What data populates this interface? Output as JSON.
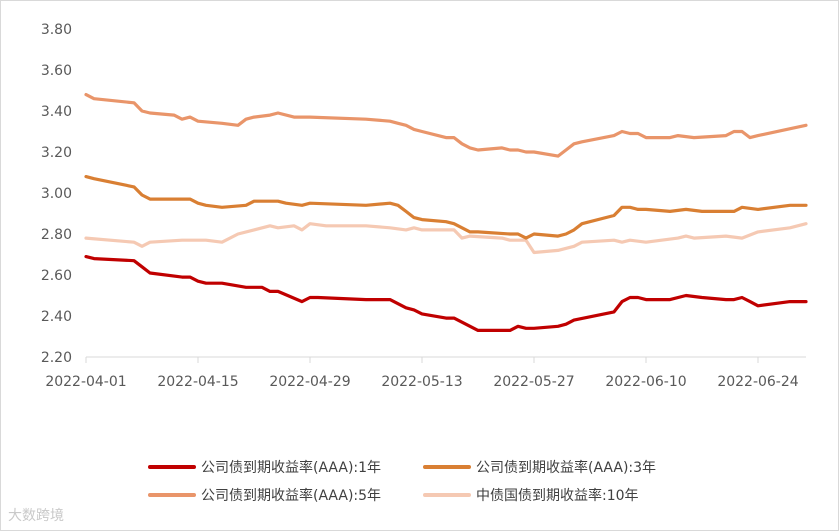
{
  "watermark": "大数跨境",
  "chart_data": {
    "type": "line",
    "title": "",
    "xlabel": "",
    "ylabel": "",
    "ylim": [
      2.2,
      3.8
    ],
    "yticks": [
      "2.20",
      "2.40",
      "2.60",
      "2.80",
      "3.00",
      "3.20",
      "3.40",
      "3.60",
      "3.80"
    ],
    "xlim": [
      "2022-04-01",
      "2022-06-30"
    ],
    "xticks": [
      "2022-04-01",
      "2022-04-15",
      "2022-04-29",
      "2022-05-13",
      "2022-05-27",
      "2022-06-10",
      "2022-06-24"
    ],
    "grid": false,
    "legend_position": "bottom",
    "series": [
      {
        "name": "公司债到期收益率(AAA):1年",
        "color": "#c00000",
        "points": [
          [
            "2022-04-01",
            2.69
          ],
          [
            "2022-04-02",
            2.68
          ],
          [
            "2022-04-07",
            2.67
          ],
          [
            "2022-04-08",
            2.64
          ],
          [
            "2022-04-09",
            2.61
          ],
          [
            "2022-04-13",
            2.59
          ],
          [
            "2022-04-14",
            2.59
          ],
          [
            "2022-04-15",
            2.57
          ],
          [
            "2022-04-16",
            2.56
          ],
          [
            "2022-04-18",
            2.56
          ],
          [
            "2022-04-21",
            2.54
          ],
          [
            "2022-04-22",
            2.54
          ],
          [
            "2022-04-23",
            2.54
          ],
          [
            "2022-04-24",
            2.52
          ],
          [
            "2022-04-25",
            2.52
          ],
          [
            "2022-04-28",
            2.47
          ],
          [
            "2022-04-29",
            2.49
          ],
          [
            "2022-04-30",
            2.49
          ],
          [
            "2022-05-06",
            2.48
          ],
          [
            "2022-05-09",
            2.48
          ],
          [
            "2022-05-11",
            2.44
          ],
          [
            "2022-05-12",
            2.43
          ],
          [
            "2022-05-13",
            2.41
          ],
          [
            "2022-05-16",
            2.39
          ],
          [
            "2022-05-17",
            2.39
          ],
          [
            "2022-05-19",
            2.35
          ],
          [
            "2022-05-20",
            2.33
          ],
          [
            "2022-05-23",
            2.33
          ],
          [
            "2022-05-24",
            2.33
          ],
          [
            "2022-05-25",
            2.35
          ],
          [
            "2022-05-26",
            2.34
          ],
          [
            "2022-05-27",
            2.34
          ],
          [
            "2022-05-30",
            2.35
          ],
          [
            "2022-05-31",
            2.36
          ],
          [
            "2022-06-01",
            2.38
          ],
          [
            "2022-06-06",
            2.42
          ],
          [
            "2022-06-07",
            2.47
          ],
          [
            "2022-06-08",
            2.49
          ],
          [
            "2022-06-09",
            2.49
          ],
          [
            "2022-06-10",
            2.48
          ],
          [
            "2022-06-13",
            2.48
          ],
          [
            "2022-06-15",
            2.5
          ],
          [
            "2022-06-17",
            2.49
          ],
          [
            "2022-06-20",
            2.48
          ],
          [
            "2022-06-21",
            2.48
          ],
          [
            "2022-06-22",
            2.49
          ],
          [
            "2022-06-23",
            2.47
          ],
          [
            "2022-06-24",
            2.45
          ],
          [
            "2022-06-28",
            2.47
          ],
          [
            "2022-06-30",
            2.47
          ]
        ]
      },
      {
        "name": "公司债到期收益率(AAA):3年",
        "color": "#d97f33",
        "points": [
          [
            "2022-04-01",
            3.08
          ],
          [
            "2022-04-02",
            3.07
          ],
          [
            "2022-04-07",
            3.03
          ],
          [
            "2022-04-08",
            2.99
          ],
          [
            "2022-04-09",
            2.97
          ],
          [
            "2022-04-14",
            2.97
          ],
          [
            "2022-04-15",
            2.95
          ],
          [
            "2022-04-16",
            2.94
          ],
          [
            "2022-04-18",
            2.93
          ],
          [
            "2022-04-21",
            2.94
          ],
          [
            "2022-04-22",
            2.96
          ],
          [
            "2022-04-25",
            2.96
          ],
          [
            "2022-04-26",
            2.95
          ],
          [
            "2022-04-28",
            2.94
          ],
          [
            "2022-04-29",
            2.95
          ],
          [
            "2022-05-06",
            2.94
          ],
          [
            "2022-05-09",
            2.95
          ],
          [
            "2022-05-10",
            2.94
          ],
          [
            "2022-05-11",
            2.91
          ],
          [
            "2022-05-12",
            2.88
          ],
          [
            "2022-05-13",
            2.87
          ],
          [
            "2022-05-16",
            2.86
          ],
          [
            "2022-05-17",
            2.85
          ],
          [
            "2022-05-18",
            2.83
          ],
          [
            "2022-05-19",
            2.81
          ],
          [
            "2022-05-20",
            2.81
          ],
          [
            "2022-05-24",
            2.8
          ],
          [
            "2022-05-25",
            2.8
          ],
          [
            "2022-05-26",
            2.78
          ],
          [
            "2022-05-27",
            2.8
          ],
          [
            "2022-05-30",
            2.79
          ],
          [
            "2022-05-31",
            2.8
          ],
          [
            "2022-06-01",
            2.82
          ],
          [
            "2022-06-02",
            2.85
          ],
          [
            "2022-06-06",
            2.89
          ],
          [
            "2022-06-07",
            2.93
          ],
          [
            "2022-06-08",
            2.93
          ],
          [
            "2022-06-09",
            2.92
          ],
          [
            "2022-06-10",
            2.92
          ],
          [
            "2022-06-13",
            2.91
          ],
          [
            "2022-06-15",
            2.92
          ],
          [
            "2022-06-17",
            2.91
          ],
          [
            "2022-06-20",
            2.91
          ],
          [
            "2022-06-21",
            2.91
          ],
          [
            "2022-06-22",
            2.93
          ],
          [
            "2022-06-24",
            2.92
          ],
          [
            "2022-06-28",
            2.94
          ],
          [
            "2022-06-30",
            2.94
          ]
        ]
      },
      {
        "name": "公司债到期收益率(AAA):5年",
        "color": "#e9956a",
        "points": [
          [
            "2022-04-01",
            3.48
          ],
          [
            "2022-04-02",
            3.46
          ],
          [
            "2022-04-07",
            3.44
          ],
          [
            "2022-04-08",
            3.4
          ],
          [
            "2022-04-09",
            3.39
          ],
          [
            "2022-04-12",
            3.38
          ],
          [
            "2022-04-13",
            3.36
          ],
          [
            "2022-04-14",
            3.37
          ],
          [
            "2022-04-15",
            3.35
          ],
          [
            "2022-04-18",
            3.34
          ],
          [
            "2022-04-20",
            3.33
          ],
          [
            "2022-04-21",
            3.36
          ],
          [
            "2022-04-22",
            3.37
          ],
          [
            "2022-04-24",
            3.38
          ],
          [
            "2022-04-25",
            3.39
          ],
          [
            "2022-04-27",
            3.37
          ],
          [
            "2022-04-28",
            3.37
          ],
          [
            "2022-04-29",
            3.37
          ],
          [
            "2022-05-06",
            3.36
          ],
          [
            "2022-05-09",
            3.35
          ],
          [
            "2022-05-10",
            3.34
          ],
          [
            "2022-05-11",
            3.33
          ],
          [
            "2022-05-12",
            3.31
          ],
          [
            "2022-05-13",
            3.3
          ],
          [
            "2022-05-16",
            3.27
          ],
          [
            "2022-05-17",
            3.27
          ],
          [
            "2022-05-18",
            3.24
          ],
          [
            "2022-05-19",
            3.22
          ],
          [
            "2022-05-20",
            3.21
          ],
          [
            "2022-05-23",
            3.22
          ],
          [
            "2022-05-24",
            3.21
          ],
          [
            "2022-05-25",
            3.21
          ],
          [
            "2022-05-26",
            3.2
          ],
          [
            "2022-05-27",
            3.2
          ],
          [
            "2022-05-30",
            3.18
          ],
          [
            "2022-05-31",
            3.21
          ],
          [
            "2022-06-01",
            3.24
          ],
          [
            "2022-06-02",
            3.25
          ],
          [
            "2022-06-06",
            3.28
          ],
          [
            "2022-06-07",
            3.3
          ],
          [
            "2022-06-08",
            3.29
          ],
          [
            "2022-06-09",
            3.29
          ],
          [
            "2022-06-10",
            3.27
          ],
          [
            "2022-06-13",
            3.27
          ],
          [
            "2022-06-14",
            3.28
          ],
          [
            "2022-06-16",
            3.27
          ],
          [
            "2022-06-20",
            3.28
          ],
          [
            "2022-06-21",
            3.3
          ],
          [
            "2022-06-22",
            3.3
          ],
          [
            "2022-06-23",
            3.27
          ],
          [
            "2022-06-24",
            3.28
          ],
          [
            "2022-06-30",
            3.33
          ]
        ]
      },
      {
        "name": "中债国债到期收益率:10年",
        "color": "#f5c9b3",
        "points": [
          [
            "2022-04-01",
            2.78
          ],
          [
            "2022-04-07",
            2.76
          ],
          [
            "2022-04-08",
            2.74
          ],
          [
            "2022-04-09",
            2.76
          ],
          [
            "2022-04-13",
            2.77
          ],
          [
            "2022-04-14",
            2.77
          ],
          [
            "2022-04-15",
            2.77
          ],
          [
            "2022-04-16",
            2.77
          ],
          [
            "2022-04-18",
            2.76
          ],
          [
            "2022-04-20",
            2.8
          ],
          [
            "2022-04-22",
            2.82
          ],
          [
            "2022-04-24",
            2.84
          ],
          [
            "2022-04-25",
            2.83
          ],
          [
            "2022-04-27",
            2.84
          ],
          [
            "2022-04-28",
            2.82
          ],
          [
            "2022-04-29",
            2.85
          ],
          [
            "2022-05-01",
            2.84
          ],
          [
            "2022-05-06",
            2.84
          ],
          [
            "2022-05-09",
            2.83
          ],
          [
            "2022-05-11",
            2.82
          ],
          [
            "2022-05-12",
            2.83
          ],
          [
            "2022-05-13",
            2.82
          ],
          [
            "2022-05-16",
            2.82
          ],
          [
            "2022-05-17",
            2.82
          ],
          [
            "2022-05-18",
            2.78
          ],
          [
            "2022-05-19",
            2.79
          ],
          [
            "2022-05-23",
            2.78
          ],
          [
            "2022-05-24",
            2.77
          ],
          [
            "2022-05-26",
            2.77
          ],
          [
            "2022-05-27",
            2.71
          ],
          [
            "2022-05-30",
            2.72
          ],
          [
            "2022-06-01",
            2.74
          ],
          [
            "2022-06-02",
            2.76
          ],
          [
            "2022-06-06",
            2.77
          ],
          [
            "2022-06-07",
            2.76
          ],
          [
            "2022-06-08",
            2.77
          ],
          [
            "2022-06-10",
            2.76
          ],
          [
            "2022-06-14",
            2.78
          ],
          [
            "2022-06-15",
            2.79
          ],
          [
            "2022-06-16",
            2.78
          ],
          [
            "2022-06-20",
            2.79
          ],
          [
            "2022-06-22",
            2.78
          ],
          [
            "2022-06-24",
            2.81
          ],
          [
            "2022-06-28",
            2.83
          ],
          [
            "2022-06-30",
            2.85
          ]
        ]
      }
    ]
  }
}
